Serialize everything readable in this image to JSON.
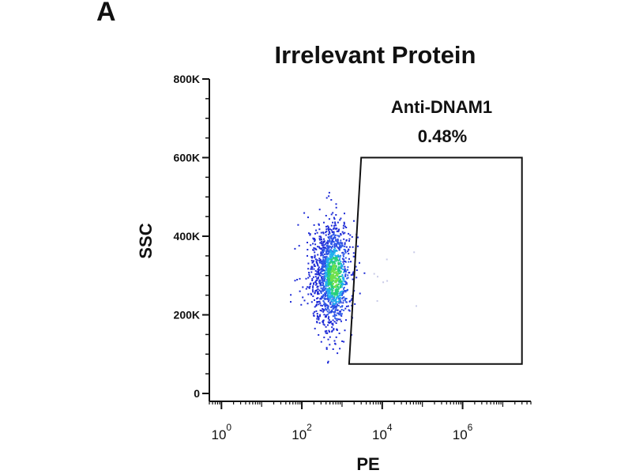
{
  "panel_label": "A",
  "chart_data": {
    "type": "scatter",
    "title": "Irrelevant Protein",
    "xlabel": "PE",
    "ylabel": "SSC",
    "x_scale": "log",
    "xlim": [
      0.5,
      50000000
    ],
    "ylim": [
      -20000,
      800000
    ],
    "y_ticks": [
      {
        "value": 0,
        "label": "0"
      },
      {
        "value": 200000,
        "label": "200K"
      },
      {
        "value": 400000,
        "label": "400K"
      },
      {
        "value": 600000,
        "label": "600K"
      },
      {
        "value": 800000,
        "label": "800K"
      }
    ],
    "x_ticks": [
      {
        "value": 1,
        "base": "10",
        "exp": "0"
      },
      {
        "value": 100,
        "base": "10",
        "exp": "2"
      },
      {
        "value": 10000,
        "base": "10",
        "exp": "4"
      },
      {
        "value": 1000000,
        "base": "10",
        "exp": "6"
      }
    ],
    "grid": false,
    "population": {
      "center_pe": 500,
      "center_ssc": 300000,
      "event_count": 1500,
      "colors": [
        "#1e2bd6",
        "#2d58e8",
        "#22b0ee",
        "#27d07a",
        "#6fe04a"
      ]
    },
    "gate": {
      "name": "Anti-DNAM1",
      "percent": "0.48%",
      "polygon": [
        [
          3000,
          600000
        ],
        [
          30000000,
          600000
        ],
        [
          30000000,
          75000
        ],
        [
          1500,
          75000
        ]
      ]
    }
  }
}
